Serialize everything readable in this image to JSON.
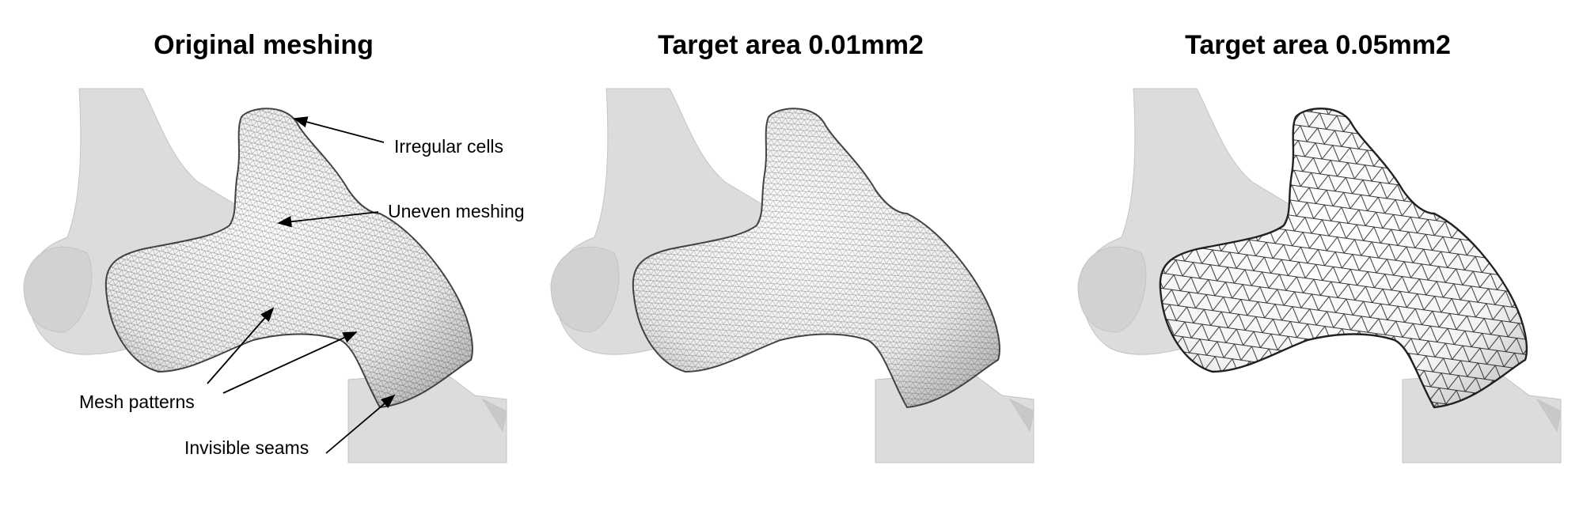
{
  "panels": [
    {
      "title": "Original meshing",
      "mesh_density": "fine-irregular"
    },
    {
      "title": "Target area 0.01mm2",
      "mesh_density": "fine-regular"
    },
    {
      "title": "Target area 0.05mm2",
      "mesh_density": "coarse-regular"
    }
  ],
  "annotations": {
    "irregular_cells": "Irregular cells",
    "uneven_meshing": "Uneven meshing",
    "mesh_patterns": "Mesh patterns",
    "invisible_seams": "Invisible seams"
  },
  "colors": {
    "background": "#ffffff",
    "context_anatomy": "#d9d9d9",
    "mesh_fill": "#f2f2f2",
    "mesh_lines": "#1a1a1a"
  }
}
